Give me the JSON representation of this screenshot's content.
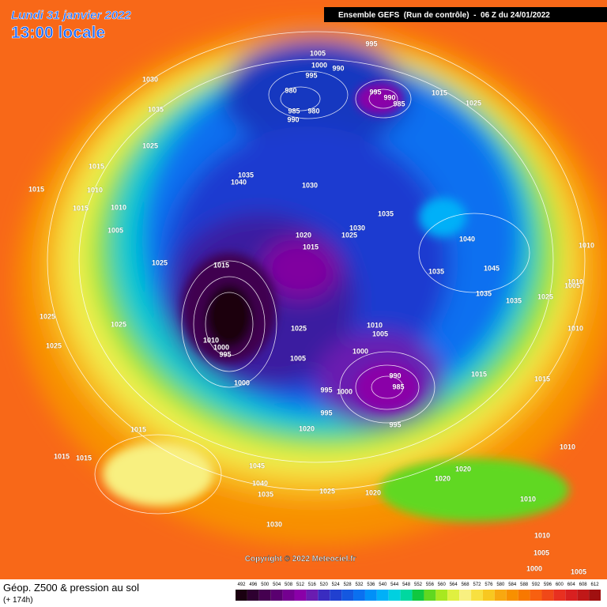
{
  "header": {
    "date": "Lundi 31 janvier 2022",
    "time": "13:00 locale",
    "model": "Ensemble GEFS  (Run de contrôle)  -  06 Z du 24/01/2022"
  },
  "copyright": "Copyright © 2022 Meteociel.fr",
  "footer": {
    "title": "Géop. Z500 & pression au sol",
    "lead": "(+ 174h)"
  },
  "legend": {
    "labels": [
      492,
      496,
      500,
      504,
      508,
      512,
      516,
      520,
      524,
      528,
      532,
      536,
      540,
      544,
      548,
      552,
      556,
      560,
      564,
      568,
      572,
      576,
      580,
      584,
      588,
      592,
      596,
      600,
      604,
      608,
      612
    ],
    "colors": [
      "#1a0010",
      "#2e0030",
      "#450050",
      "#5a0070",
      "#740090",
      "#8a00a8",
      "#6a1cb0",
      "#3a2cc0",
      "#2040d0",
      "#1458e0",
      "#0a70f0",
      "#0090f8",
      "#00b0f8",
      "#00d0e0",
      "#00d8a0",
      "#10c840",
      "#60d820",
      "#a8e820",
      "#e0f040",
      "#f8f080",
      "#f8e040",
      "#f8c820",
      "#f8a810",
      "#f89000",
      "#f87800",
      "#f86010",
      "#f04818",
      "#e83020",
      "#d82020",
      "#c01818",
      "#a01010"
    ]
  },
  "pressure_labels": [
    1030,
    1035,
    1025,
    1015,
    1015,
    1010,
    1015,
    1010,
    1005,
    1025,
    1025,
    1025,
    1025,
    1015,
    1015,
    1015,
    1045,
    1040,
    1035,
    1030,
    1025,
    1020,
    1020,
    1000,
    1005,
    1025,
    995,
    995,
    1000,
    1000,
    1010,
    1005,
    990,
    985,
    995,
    1015,
    1015,
    1020,
    1020,
    1010,
    1010,
    1010,
    1005,
    1000,
    1005,
    1015,
    1010,
    1000,
    995,
    1020,
    1015,
    1025,
    1030,
    1035,
    1030,
    1035,
    1040,
    1035,
    1040,
    1045,
    1035,
    1035,
    1025,
    1010,
    1010,
    1005,
    1010,
    1025,
    1015,
    995,
    1005,
    1000,
    995,
    990,
    980,
    985,
    990,
    980,
    995,
    985,
    990
  ]
}
